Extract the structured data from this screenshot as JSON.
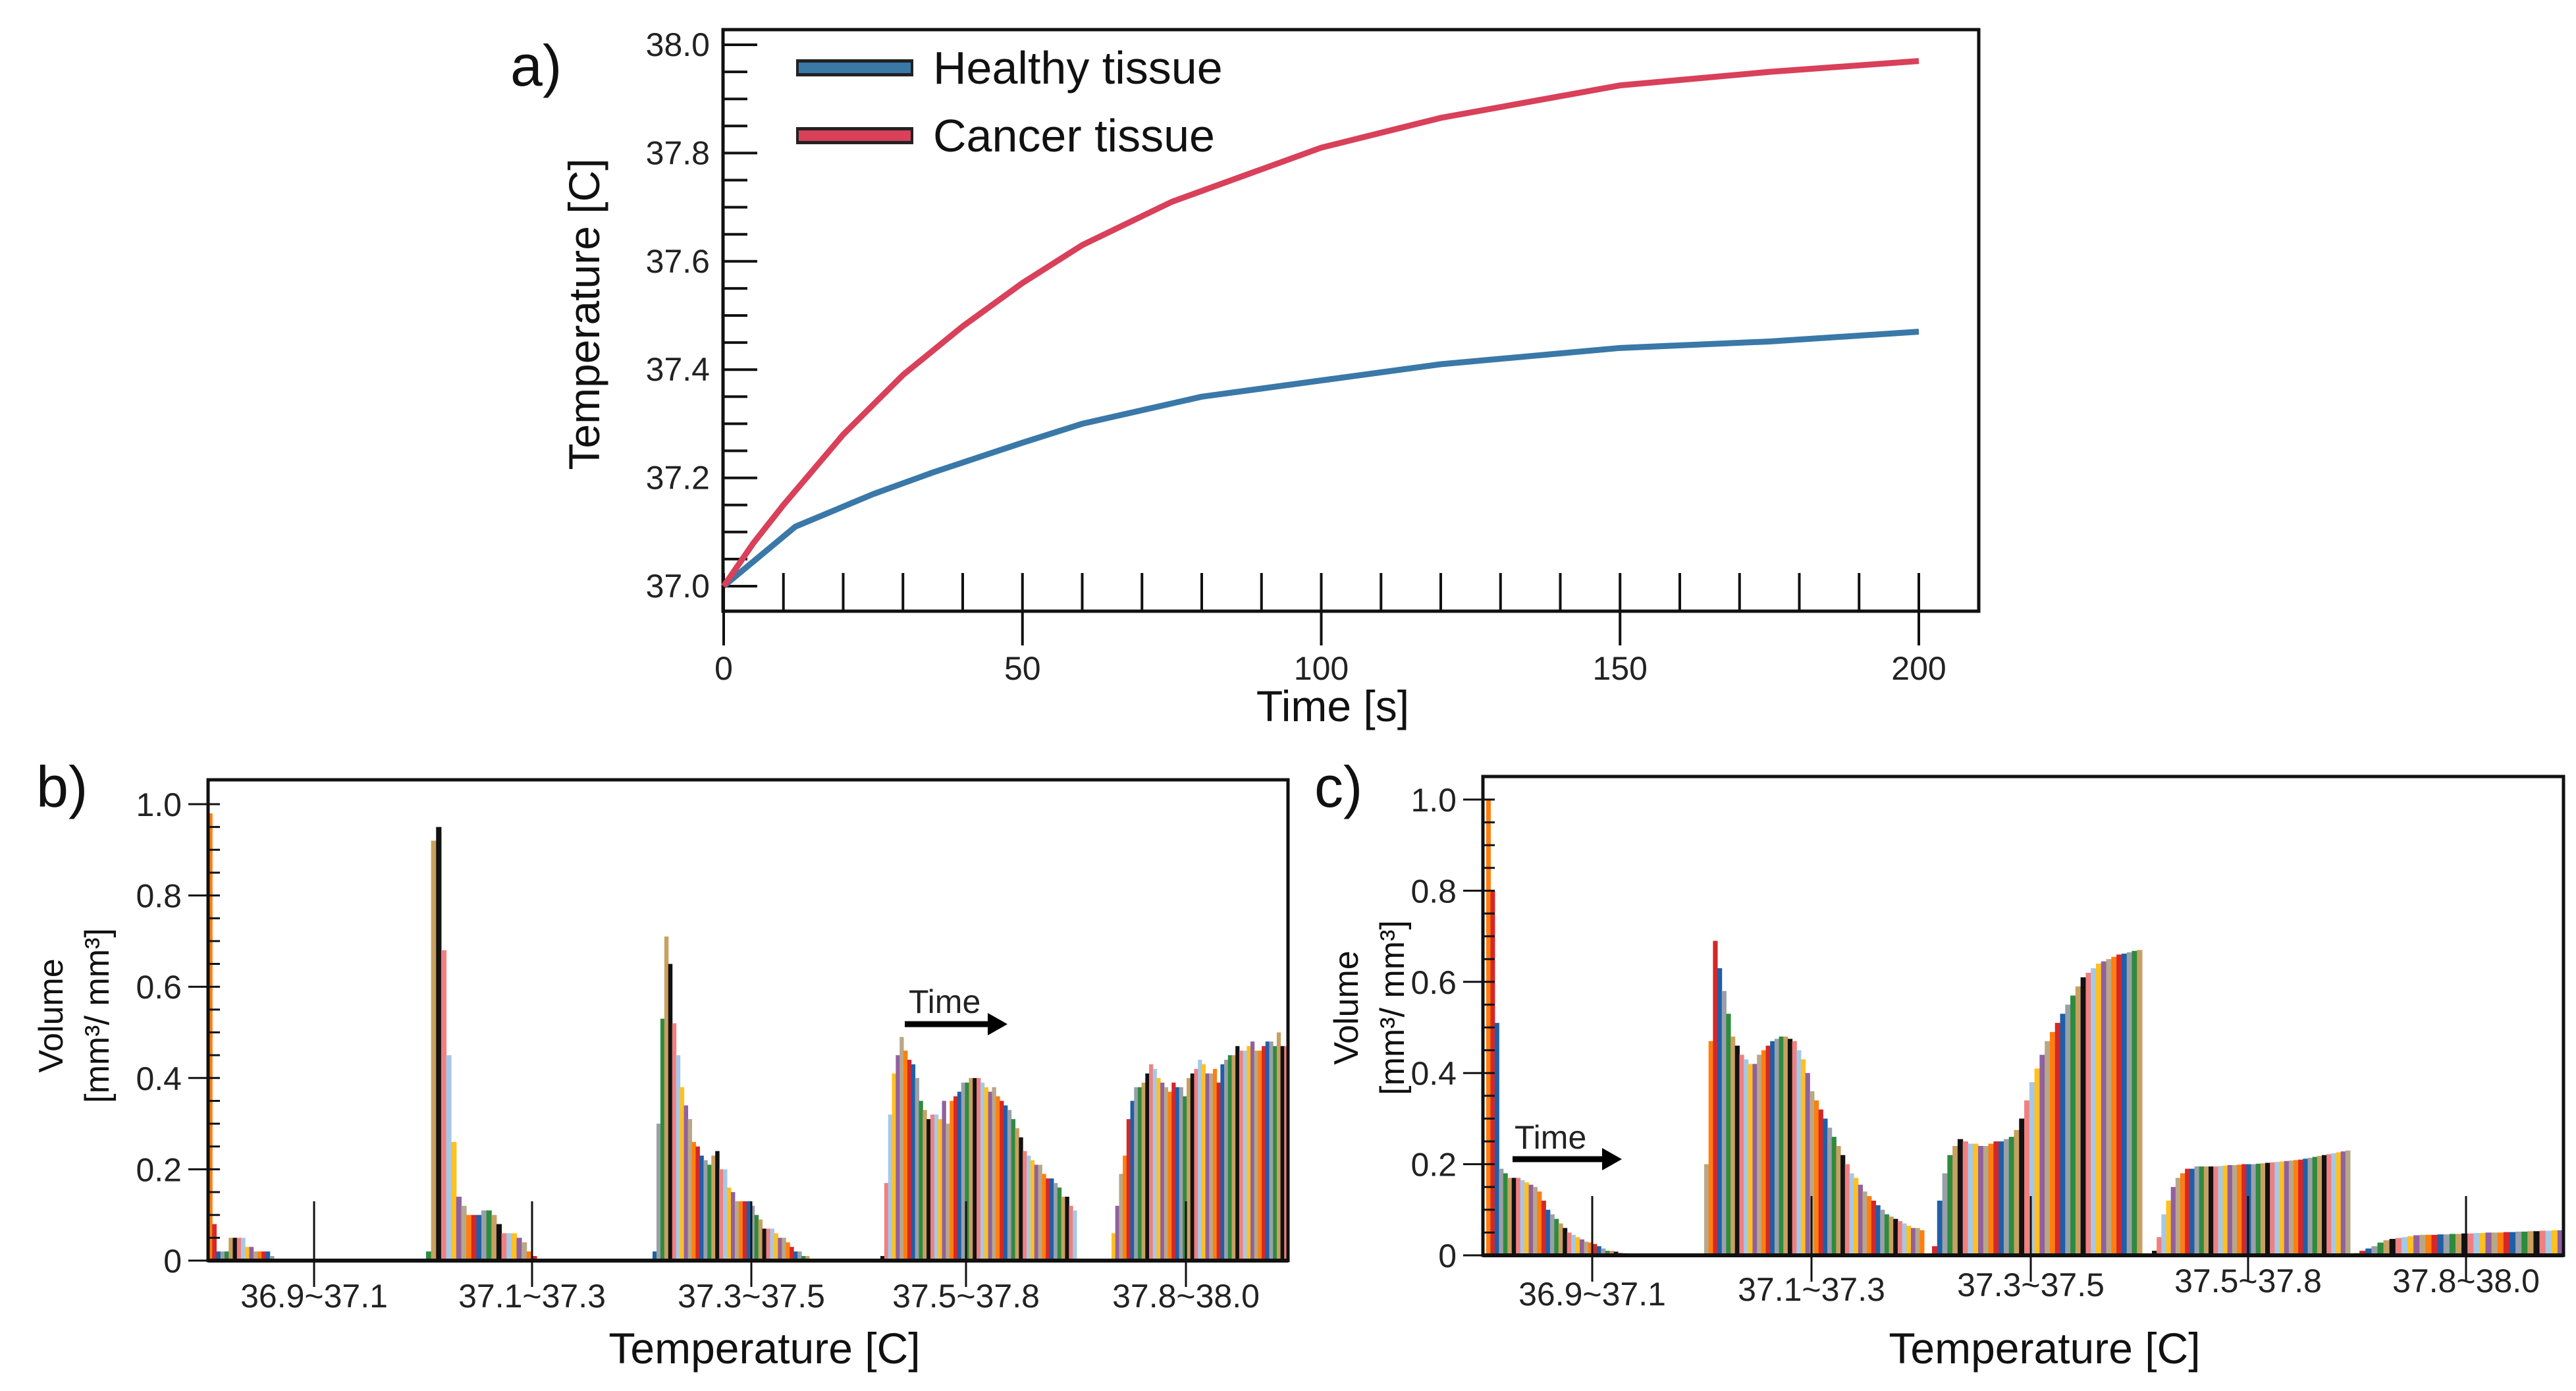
{
  "chart_data": [
    {
      "panel": "a)",
      "type": "line",
      "xlabel": "Time [s]",
      "ylabel": "Temperature [C]",
      "xlim": [
        0,
        200
      ],
      "ylim": [
        37.0,
        38.0
      ],
      "xticks": [
        "0",
        "50",
        "100",
        "150",
        "200"
      ],
      "yticks": [
        "37.0",
        "37.2",
        "37.4",
        "37.6",
        "37.8",
        "38.0"
      ],
      "legend_position": "top-left",
      "series": [
        {
          "name": "Healthy tissue",
          "color": "#3a78a8",
          "x": [
            0,
            12,
            25,
            35,
            50,
            60,
            80,
            100,
            120,
            150,
            175,
            200
          ],
          "y": [
            37.0,
            37.11,
            37.17,
            37.21,
            37.265,
            37.3,
            37.35,
            37.38,
            37.41,
            37.44,
            37.452,
            37.47
          ]
        },
        {
          "name": "Cancer tissue",
          "color": "#d9405a",
          "x": [
            0,
            5,
            10,
            20,
            30,
            40,
            50,
            60,
            75,
            90,
            100,
            120,
            140,
            150,
            175,
            200
          ],
          "y": [
            37.0,
            37.08,
            37.15,
            37.28,
            37.39,
            37.48,
            37.56,
            37.63,
            37.71,
            37.77,
            37.81,
            37.865,
            37.905,
            37.925,
            37.95,
            37.97
          ]
        }
      ]
    },
    {
      "panel": "b)",
      "type": "bar",
      "xlabel": "Temperature [C]",
      "ylabel_line1": "Volume",
      "ylabel_line2": "[mm³/ mm³]",
      "ylim": [
        0,
        1.0
      ],
      "yticks": [
        "0",
        "0.2",
        "0.4",
        "0.6",
        "0.8",
        "1.0"
      ],
      "annotation": "Time",
      "categories": [
        "36.9~37.1",
        "37.1~37.3",
        "37.3~37.5",
        "37.5~37.8",
        "37.8~38.0"
      ],
      "groups": [
        [
          0.98,
          0.08,
          0.02,
          0.02,
          0.02,
          0.05,
          0.05,
          0.05,
          0.05,
          0.03,
          0.03,
          0.02,
          0.02,
          0.02,
          0.02,
          0.01
        ],
        [
          0.02,
          0.92,
          0.95,
          0.68,
          0.45,
          0.26,
          0.14,
          0.12,
          0.1,
          0.1,
          0.1,
          0.11,
          0.11,
          0.1,
          0.08,
          0.06,
          0.06,
          0.06,
          0.05,
          0.04,
          0.02,
          0.01
        ],
        [
          0.02,
          0.3,
          0.53,
          0.71,
          0.65,
          0.52,
          0.45,
          0.38,
          0.34,
          0.31,
          0.26,
          0.25,
          0.23,
          0.22,
          0.21,
          0.23,
          0.24,
          0.2,
          0.2,
          0.16,
          0.15,
          0.13,
          0.13,
          0.13,
          0.13,
          0.12,
          0.1,
          0.09,
          0.07,
          0.07,
          0.07,
          0.06,
          0.05,
          0.05,
          0.04,
          0.03,
          0.02,
          0.02,
          0.01,
          0.01
        ],
        [
          0.01,
          0.17,
          0.32,
          0.41,
          0.45,
          0.49,
          0.46,
          0.44,
          0.43,
          0.4,
          0.35,
          0.33,
          0.31,
          0.32,
          0.32,
          0.31,
          0.35,
          0.3,
          0.35,
          0.36,
          0.37,
          0.39,
          0.39,
          0.4,
          0.4,
          0.4,
          0.39,
          0.38,
          0.37,
          0.38,
          0.36,
          0.35,
          0.34,
          0.33,
          0.31,
          0.29,
          0.27,
          0.24,
          0.23,
          0.22,
          0.21,
          0.21,
          0.19,
          0.18,
          0.18,
          0.17,
          0.16,
          0.14,
          0.14,
          0.12,
          0.11
        ],
        [
          0.06,
          0.12,
          0.19,
          0.23,
          0.31,
          0.35,
          0.38,
          0.38,
          0.39,
          0.41,
          0.43,
          0.42,
          0.4,
          0.39,
          0.38,
          0.37,
          0.39,
          0.38,
          0.38,
          0.36,
          0.4,
          0.41,
          0.42,
          0.44,
          0.43,
          0.41,
          0.41,
          0.42,
          0.39,
          0.43,
          0.44,
          0.45,
          0.45,
          0.47,
          0.46,
          0.46,
          0.47,
          0.48,
          0.46,
          0.46,
          0.47,
          0.48,
          0.48,
          0.47,
          0.5,
          0.47,
          0.47
        ]
      ]
    },
    {
      "panel": "c)",
      "type": "bar",
      "xlabel": "Temperature [C]",
      "ylabel_line1": "Volume",
      "ylabel_line2": "[mm³/ mm³]",
      "ylim": [
        0,
        1.0
      ],
      "yticks": [
        "0",
        "0.2",
        "0.4",
        "0.6",
        "0.8",
        "1.0"
      ],
      "annotation": "Time",
      "categories": [
        "36.9~37.1",
        "37.1~37.3",
        "37.3~37.5",
        "37.5~37.8",
        "37.8~38.0"
      ],
      "groups": [
        [
          1.0,
          0.8,
          0.51,
          0.19,
          0.18,
          0.17,
          0.17,
          0.17,
          0.165,
          0.16,
          0.155,
          0.15,
          0.14,
          0.12,
          0.1,
          0.09,
          0.08,
          0.07,
          0.06,
          0.05,
          0.045,
          0.04,
          0.035,
          0.03,
          0.028,
          0.025,
          0.02,
          0.015,
          0.01,
          0.01,
          0.008,
          0.006,
          0.005,
          0.004,
          0.003
        ],
        [
          0.2,
          0.47,
          0.69,
          0.63,
          0.58,
          0.53,
          0.48,
          0.46,
          0.44,
          0.43,
          0.42,
          0.42,
          0.44,
          0.45,
          0.46,
          0.47,
          0.475,
          0.48,
          0.48,
          0.475,
          0.47,
          0.45,
          0.43,
          0.4,
          0.36,
          0.34,
          0.32,
          0.3,
          0.28,
          0.26,
          0.24,
          0.22,
          0.2,
          0.18,
          0.17,
          0.155,
          0.14,
          0.13,
          0.12,
          0.11,
          0.1,
          0.09,
          0.085,
          0.08,
          0.075,
          0.07,
          0.065,
          0.06,
          0.06,
          0.055
        ],
        [
          0.02,
          0.12,
          0.18,
          0.22,
          0.24,
          0.255,
          0.25,
          0.245,
          0.245,
          0.24,
          0.24,
          0.245,
          0.25,
          0.25,
          0.255,
          0.26,
          0.275,
          0.3,
          0.34,
          0.38,
          0.41,
          0.44,
          0.47,
          0.49,
          0.51,
          0.53,
          0.55,
          0.57,
          0.59,
          0.61,
          0.62,
          0.63,
          0.64,
          0.645,
          0.65,
          0.655,
          0.66,
          0.662,
          0.665,
          0.668,
          0.67
        ],
        [
          0.01,
          0.04,
          0.09,
          0.12,
          0.15,
          0.17,
          0.18,
          0.19,
          0.19,
          0.195,
          0.195,
          0.195,
          0.195,
          0.195,
          0.196,
          0.197,
          0.198,
          0.198,
          0.199,
          0.2,
          0.2,
          0.2,
          0.201,
          0.202,
          0.203,
          0.204,
          0.205,
          0.206,
          0.207,
          0.208,
          0.209,
          0.21,
          0.212,
          0.214,
          0.216,
          0.218,
          0.22,
          0.222,
          0.224,
          0.226,
          0.228,
          0.23
        ],
        [
          0.005,
          0.01,
          0.015,
          0.02,
          0.028,
          0.033,
          0.036,
          0.038,
          0.04,
          0.042,
          0.044,
          0.045,
          0.045,
          0.045,
          0.046,
          0.046,
          0.047,
          0.047,
          0.048,
          0.048,
          0.049,
          0.049,
          0.05,
          0.05,
          0.05,
          0.051,
          0.051,
          0.052,
          0.052,
          0.053,
          0.053,
          0.054,
          0.054,
          0.055,
          0.055
        ]
      ]
    }
  ],
  "bar_palette": [
    "#ff7f0e",
    "#d62728",
    "#1f5fa8",
    "#9aa0a8",
    "#2e8b3e",
    "#c8a060",
    "#111111",
    "#f08080",
    "#a6c8e8",
    "#ffc020",
    "#9060a0",
    "#b8a888"
  ]
}
